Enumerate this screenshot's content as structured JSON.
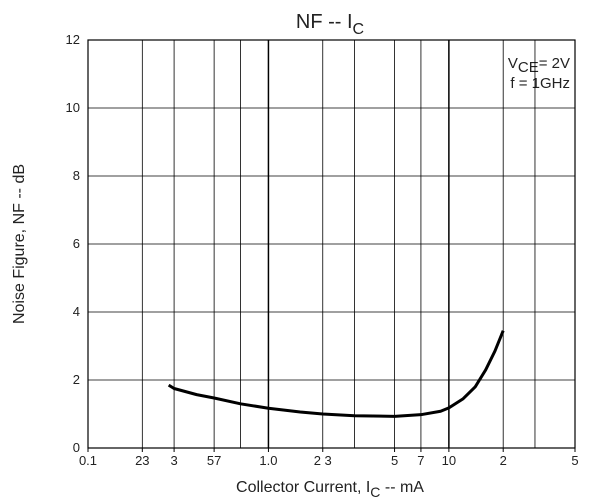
{
  "chart_data": {
    "type": "line",
    "title": {
      "main": "NF  --  I",
      "sub": "C"
    },
    "x_label": {
      "main": "Collector Current, I",
      "sub": "C",
      "tail": "  --  mA"
    },
    "y_label": "Noise Figure, NF  --  dB",
    "annotations": [
      {
        "main": "V",
        "sub": "CE",
        "tail": "= 2V"
      },
      {
        "main": "f = 1GHz"
      }
    ],
    "log_x": true,
    "xlim": [
      0.1,
      50
    ],
    "ylim": [
      0,
      12
    ],
    "xticks": [
      0.1,
      {
        "value": 0.2,
        "label": "23"
      },
      {
        "value": 0.3,
        "label": "3"
      },
      {
        "value": 0.5,
        "label": "57"
      },
      {
        "value": 1,
        "label": "1.0"
      },
      {
        "value": 2,
        "label": "2 3"
      },
      5,
      7,
      10,
      {
        "value": 20,
        "label": "2"
      },
      {
        "value": 50,
        "label": "5"
      }
    ],
    "x_grid": [
      0.2,
      0.3,
      0.5,
      0.7,
      1,
      2,
      3,
      5,
      7,
      10,
      20,
      30
    ],
    "yticks": [
      0,
      2,
      4,
      6,
      8,
      10,
      12
    ],
    "grid": true,
    "series": [
      {
        "color": "#000000",
        "x": [
          0.28,
          0.3,
          0.4,
          0.5,
          0.7,
          1,
          1.5,
          2,
          3,
          5,
          7,
          9,
          10,
          12,
          14,
          16,
          18,
          20
        ],
        "values": [
          1.85,
          1.75,
          1.57,
          1.47,
          1.3,
          1.17,
          1.06,
          1.0,
          0.95,
          0.93,
          0.98,
          1.08,
          1.18,
          1.45,
          1.8,
          2.3,
          2.85,
          3.45
        ]
      }
    ]
  }
}
